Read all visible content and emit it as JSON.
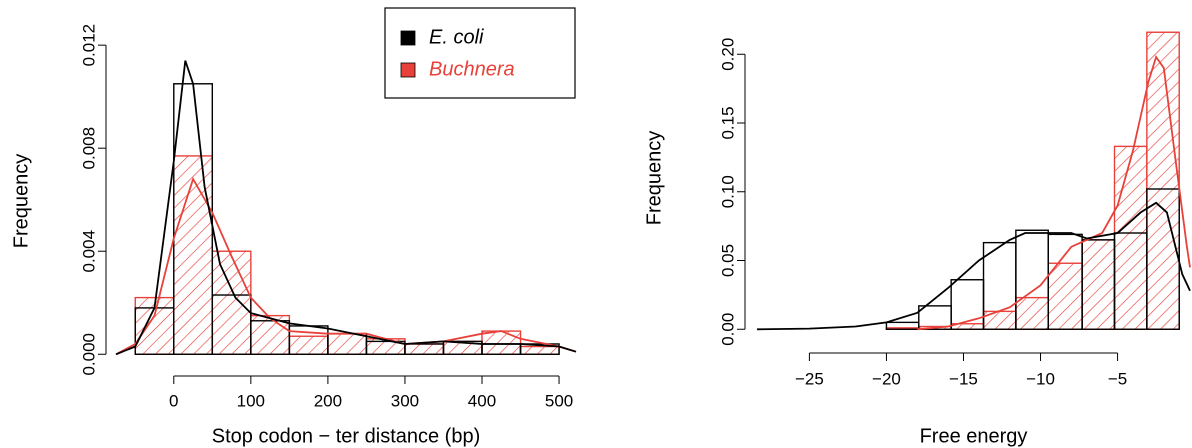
{
  "chart_data": [
    {
      "type": "histogram",
      "x_label": "Stop codon − ter distance (bp)",
      "y_label": "Frequency",
      "bins": [
        -50,
        0,
        50,
        100,
        150,
        200,
        250,
        300,
        350,
        400,
        450,
        500
      ],
      "series": [
        {
          "name": "E. coli",
          "color": "#000000",
          "hatch": false,
          "values": [
            0.0018,
            0.0105,
            0.0023,
            0.0013,
            0.0011,
            0.0008,
            0.0005,
            0.0004,
            0.0005,
            0.0004,
            0.0004
          ],
          "density_x": [
            -75,
            -50,
            -25,
            0,
            15,
            25,
            40,
            60,
            80,
            100,
            150,
            200,
            250,
            300,
            350,
            400,
            450,
            500,
            522
          ],
          "density": [
            0,
            0.0003,
            0.0018,
            0.0075,
            0.0114,
            0.0105,
            0.0065,
            0.0035,
            0.0022,
            0.0016,
            0.0012,
            0.001,
            0.0007,
            0.0004,
            0.0005,
            0.0004,
            0.0004,
            0.0003,
            0.0001
          ]
        },
        {
          "name": "Buchnera",
          "color": "#e8413a",
          "hatch": true,
          "values": [
            0.0022,
            0.0077,
            0.004,
            0.0015,
            0.0007,
            0.0008,
            0.0006,
            0.0004,
            0.0005,
            0.0009,
            0.0003
          ],
          "density_x": [
            -75,
            -50,
            -25,
            0,
            25,
            50,
            75,
            100,
            125,
            150,
            200,
            250,
            300,
            350,
            400,
            425,
            450,
            500,
            522
          ],
          "density": [
            0,
            0.0004,
            0.0015,
            0.0045,
            0.0068,
            0.0055,
            0.0038,
            0.0022,
            0.0014,
            0.0009,
            0.0008,
            0.0008,
            0.0004,
            0.0005,
            0.0008,
            0.0009,
            0.0006,
            0.0003,
            0.0001
          ]
        }
      ],
      "xlim": [
        -75,
        522
      ],
      "xticks": [
        0,
        100,
        200,
        300,
        400,
        500
      ],
      "ylim": [
        -0.0003,
        0.0122
      ],
      "yticks": [
        {
          "value": 0,
          "label": "0.000"
        },
        0.004,
        0.008,
        0.012
      ],
      "legend": "top-right"
    },
    {
      "type": "histogram",
      "x_label": "Free energy",
      "y_label": "Frequency",
      "bins": [
        -20,
        -17.9,
        -15.8,
        -13.7,
        -11.6,
        -9.5,
        -7.3,
        -5.2,
        -3.1,
        -1.0
      ],
      "series": [
        {
          "color": "#000000",
          "hatch": false,
          "values": [
            0.005,
            0.017,
            0.036,
            0.063,
            0.072,
            0.069,
            0.065,
            0.07,
            0.102
          ],
          "density_x": [
            -28.4,
            -25,
            -22,
            -20,
            -18,
            -16,
            -14,
            -12,
            -11,
            -9,
            -8,
            -7,
            -5,
            -3.5,
            -2.5,
            -1.8,
            -0.8,
            -0.3
          ],
          "density": [
            0,
            0.0005,
            0.002,
            0.005,
            0.012,
            0.03,
            0.05,
            0.065,
            0.07,
            0.07,
            0.07,
            0.066,
            0.07,
            0.085,
            0.092,
            0.085,
            0.04,
            0.028
          ]
        },
        {
          "color": "#e8413a",
          "hatch": true,
          "values": [
            0.001,
            0.002,
            0.004,
            0.013,
            0.023,
            0.048,
            0.065,
            0.133,
            0.216
          ],
          "density_x": [
            -18,
            -16,
            -14,
            -12,
            -10,
            -8,
            -6,
            -5,
            -4,
            -3,
            -2.5,
            -2,
            -1.2,
            -0.5,
            -0.3
          ],
          "density": [
            0,
            0.002,
            0.008,
            0.016,
            0.032,
            0.06,
            0.07,
            0.09,
            0.13,
            0.18,
            0.198,
            0.19,
            0.12,
            0.06,
            0.045
          ]
        }
      ],
      "xlim": [
        -28.4,
        -0.3
      ],
      "xticks": [
        {
          "value": -25,
          "label": "−25"
        },
        {
          "value": -20,
          "label": "−20"
        },
        {
          "value": -15,
          "label": "−15"
        },
        {
          "value": -10,
          "label": "−10"
        },
        {
          "value": -5,
          "label": "−5"
        }
      ],
      "ylim": [
        -0.002,
        0.222
      ],
      "yticks": [
        {
          "value": 0,
          "label": "0.00"
        },
        0.05,
        {
          "value": 0.1,
          "label": "0.10"
        },
        0.15,
        {
          "value": 0.2,
          "label": "0.20"
        }
      ]
    }
  ]
}
